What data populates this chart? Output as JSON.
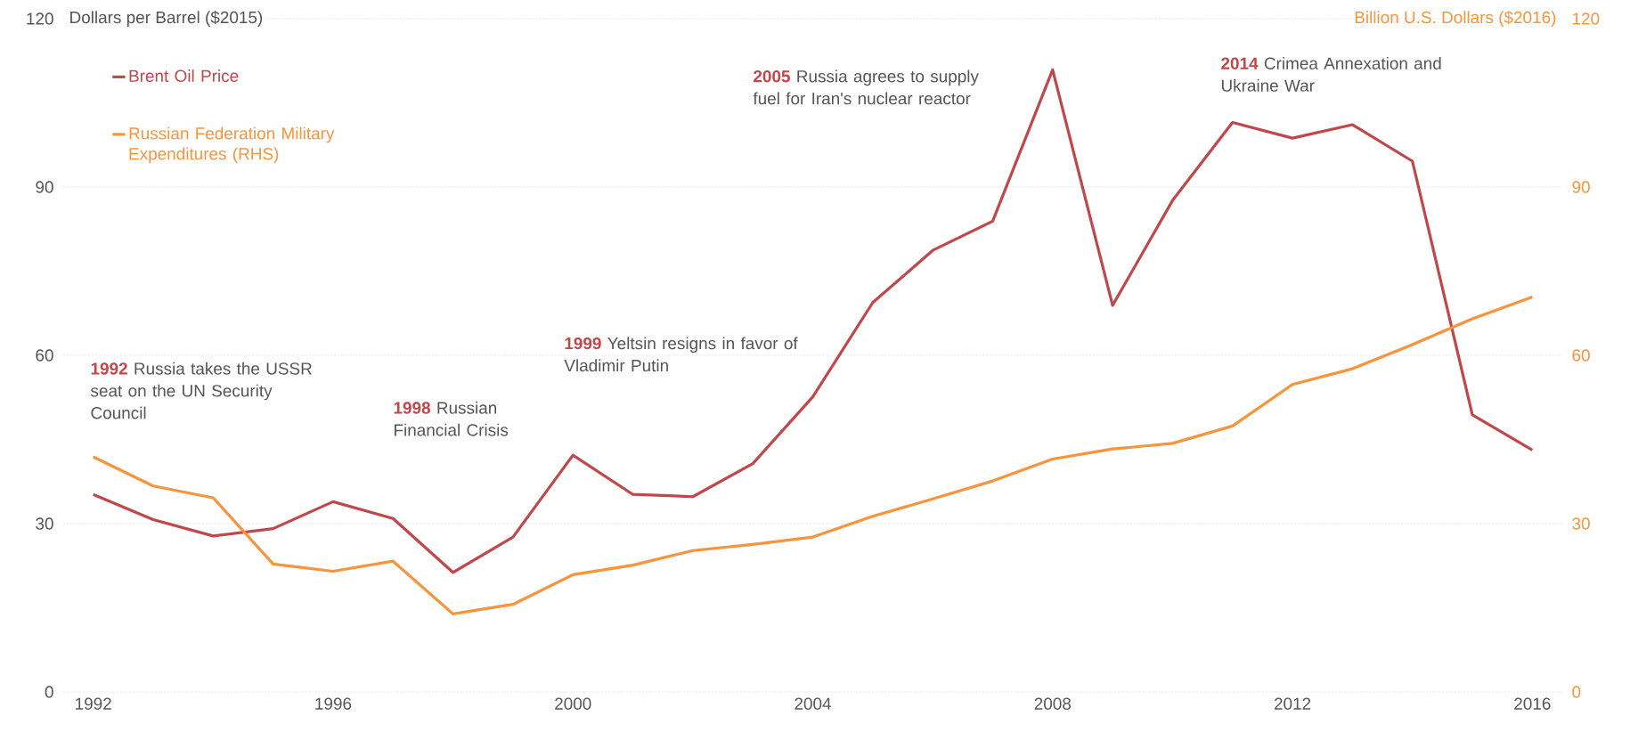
{
  "chart_data": {
    "type": "line",
    "ylabel": "Dollars per Barrel ($2015)",
    "y2label": "Billion U.S. Dollars ($2016)",
    "x": [
      1992,
      1993,
      1994,
      1995,
      1996,
      1997,
      1998,
      1999,
      2000,
      2001,
      2002,
      2003,
      2004,
      2005,
      2006,
      2007,
      2008,
      2009,
      2010,
      2011,
      2012,
      2013,
      2014,
      2015,
      2016
    ],
    "series": [
      {
        "name": "Brent Oil Price",
        "color": "#c0474a",
        "values": [
          35.2,
          30.7,
          27.8,
          29.1,
          33.9,
          30.9,
          21.3,
          27.6,
          42.2,
          35.2,
          34.8,
          40.7,
          52.6,
          69.4,
          78.7,
          83.9,
          110.9,
          68.9,
          87.6,
          101.5,
          98.7,
          101.1,
          94.6,
          49.4,
          43.1
        ]
      },
      {
        "name": "Russian Federation Military Expenditures (RHS)",
        "color": "#f7943c",
        "axis": "y2",
        "values": [
          41.9,
          36.7,
          34.6,
          22.8,
          21.5,
          23.3,
          13.9,
          15.6,
          20.9,
          22.6,
          25.2,
          26.3,
          27.6,
          31.3,
          34.4,
          37.6,
          41.5,
          43.3,
          44.3,
          47.4,
          54.8,
          57.6,
          61.9,
          66.5,
          70.4
        ]
      }
    ],
    "xlim": [
      1991.5,
      2016.5
    ],
    "xticks": [
      1992,
      1996,
      2000,
      2004,
      2008,
      2012,
      2016
    ],
    "ylim": [
      0,
      120
    ],
    "yticks": [
      0,
      30,
      60,
      90,
      120
    ],
    "y2lim": [
      0,
      120
    ],
    "y2ticks": [
      0,
      30,
      60,
      90,
      120
    ],
    "grid": "y",
    "legend": "top left",
    "marker": "none",
    "line_style": "solid",
    "annotations": [
      "**1992** Russia takes the USSR seat on the UN Security Council",
      "**1998** Russian Financial Crisis",
      "**1999** Yeltsin resigns in favor of Vladimir Putin",
      "**2005** Russia agrees to supply fuel for Iran's nuclear reactor",
      "**2014** Crimea Annexation and Ukraine War"
    ]
  }
}
